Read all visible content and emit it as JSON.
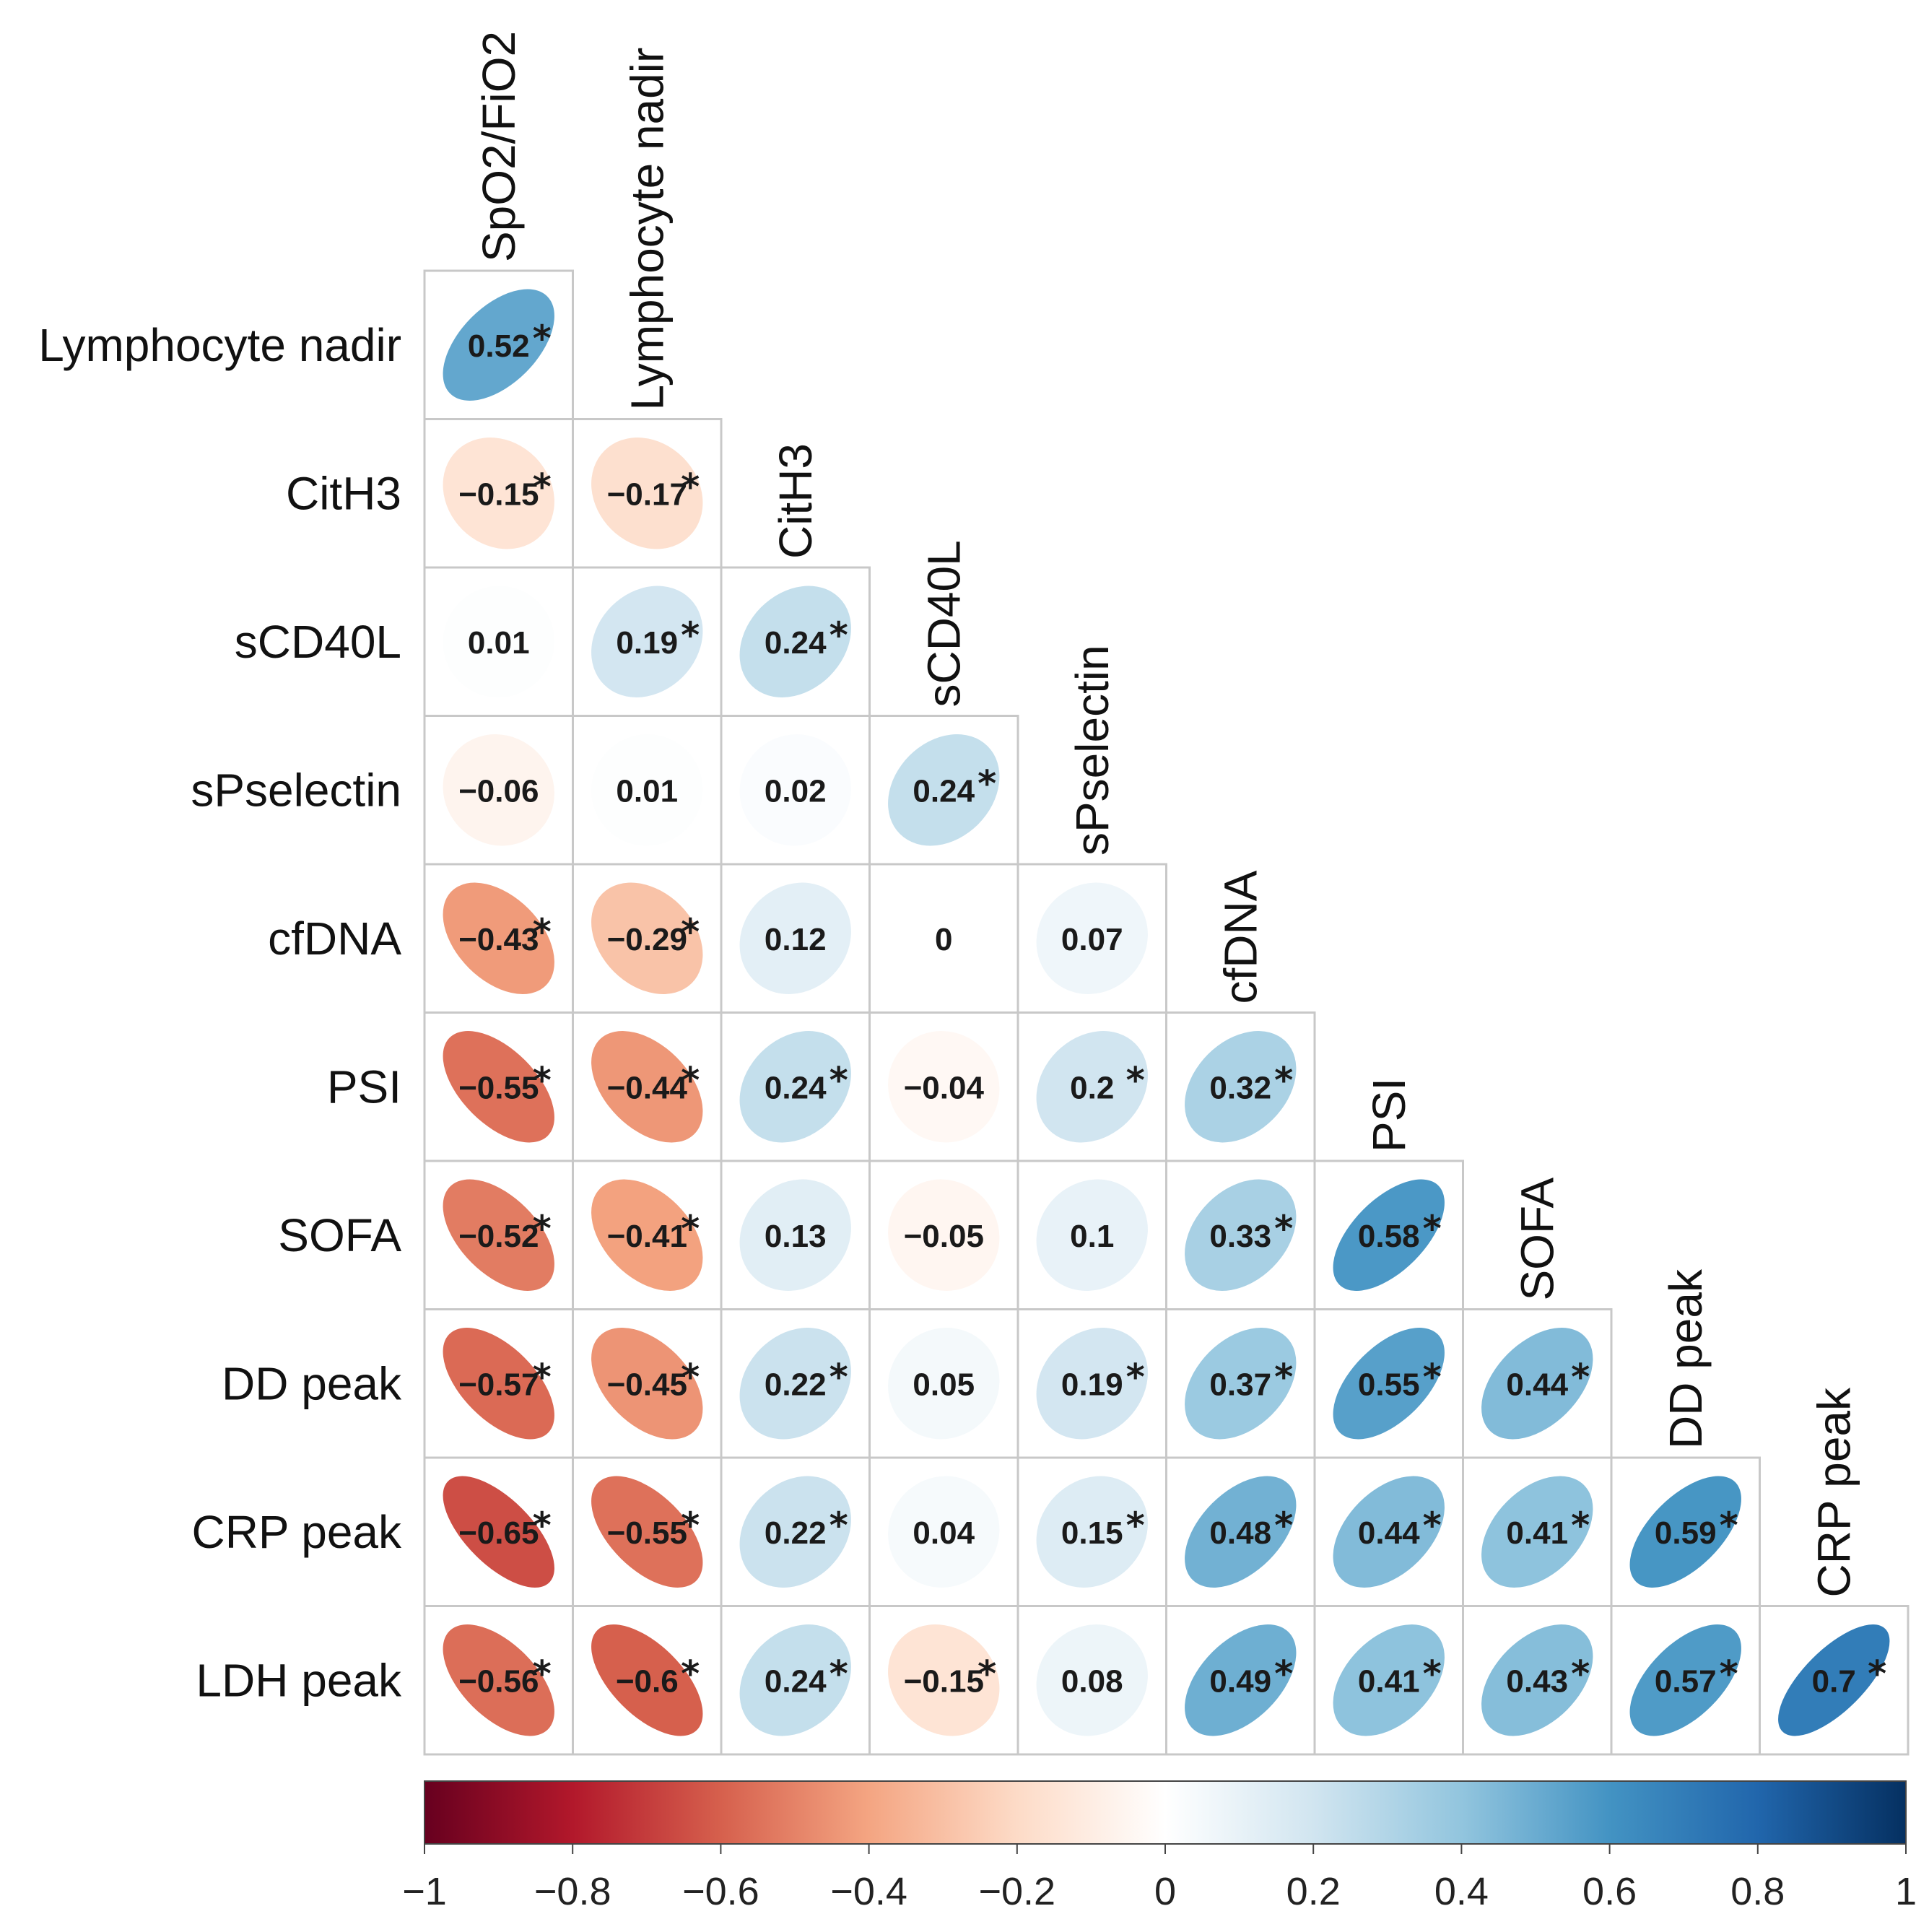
{
  "chart_data": {
    "type": "heatmap",
    "subtype": "lower-triangular correlation matrix (ellipse glyphs)",
    "variables": [
      "SpO2/FiO2",
      "Lymphocyte nadir",
      "CitH3",
      "sCD40L",
      "sPselectin",
      "cfDNA",
      "PSI",
      "SOFA",
      "DD peak",
      "CRP peak",
      "LDH peak"
    ],
    "row_labels": [
      "Lymphocyte nadir",
      "CitH3",
      "sCD40L",
      "sPselectin",
      "cfDNA",
      "PSI",
      "SOFA",
      "DD peak",
      "CRP peak",
      "LDH peak"
    ],
    "col_labels": [
      "SpO2/FiO2",
      "Lymphocyte nadir",
      "CitH3",
      "sCD40L",
      "sPselectin",
      "cfDNA",
      "PSI",
      "SOFA",
      "DD peak",
      "CRP peak"
    ],
    "cells": [
      [
        {
          "v": 0.52,
          "t": "0.52",
          "sig": true
        }
      ],
      [
        {
          "v": -0.15,
          "t": "−0.15",
          "sig": true
        },
        {
          "v": -0.17,
          "t": "−0.17",
          "sig": true
        }
      ],
      [
        {
          "v": 0.01,
          "t": "0.01",
          "sig": false
        },
        {
          "v": 0.19,
          "t": "0.19",
          "sig": true
        },
        {
          "v": 0.24,
          "t": "0.24",
          "sig": true
        }
      ],
      [
        {
          "v": -0.06,
          "t": "−0.06",
          "sig": false
        },
        {
          "v": 0.01,
          "t": "0.01",
          "sig": false
        },
        {
          "v": 0.02,
          "t": "0.02",
          "sig": false
        },
        {
          "v": 0.24,
          "t": "0.24",
          "sig": true
        }
      ],
      [
        {
          "v": -0.43,
          "t": "−0.43",
          "sig": true
        },
        {
          "v": -0.29,
          "t": "−0.29",
          "sig": true
        },
        {
          "v": 0.12,
          "t": "0.12",
          "sig": false
        },
        {
          "v": 0,
          "t": "0",
          "sig": false
        },
        {
          "v": 0.07,
          "t": "0.07",
          "sig": false
        }
      ],
      [
        {
          "v": -0.55,
          "t": "−0.55",
          "sig": true
        },
        {
          "v": -0.44,
          "t": "−0.44",
          "sig": true
        },
        {
          "v": 0.24,
          "t": "0.24",
          "sig": true
        },
        {
          "v": -0.04,
          "t": "−0.04",
          "sig": false
        },
        {
          "v": 0.2,
          "t": "0.2",
          "sig": true
        },
        {
          "v": 0.32,
          "t": "0.32",
          "sig": true
        }
      ],
      [
        {
          "v": -0.52,
          "t": "−0.52",
          "sig": true
        },
        {
          "v": -0.41,
          "t": "−0.41",
          "sig": true
        },
        {
          "v": 0.13,
          "t": "0.13",
          "sig": false
        },
        {
          "v": -0.05,
          "t": "−0.05",
          "sig": false
        },
        {
          "v": 0.1,
          "t": "0.1",
          "sig": false
        },
        {
          "v": 0.33,
          "t": "0.33",
          "sig": true
        },
        {
          "v": 0.58,
          "t": "0.58",
          "sig": true
        }
      ],
      [
        {
          "v": -0.57,
          "t": "−0.57",
          "sig": true
        },
        {
          "v": -0.45,
          "t": "−0.45",
          "sig": true
        },
        {
          "v": 0.22,
          "t": "0.22",
          "sig": true
        },
        {
          "v": 0.05,
          "t": "0.05",
          "sig": false
        },
        {
          "v": 0.19,
          "t": "0.19",
          "sig": true
        },
        {
          "v": 0.37,
          "t": "0.37",
          "sig": true
        },
        {
          "v": 0.55,
          "t": "0.55",
          "sig": true
        },
        {
          "v": 0.44,
          "t": "0.44",
          "sig": true
        }
      ],
      [
        {
          "v": -0.65,
          "t": "−0.65",
          "sig": true
        },
        {
          "v": -0.55,
          "t": "−0.55",
          "sig": true
        },
        {
          "v": 0.22,
          "t": "0.22",
          "sig": true
        },
        {
          "v": 0.04,
          "t": "0.04",
          "sig": false
        },
        {
          "v": 0.15,
          "t": "0.15",
          "sig": true
        },
        {
          "v": 0.48,
          "t": "0.48",
          "sig": true
        },
        {
          "v": 0.44,
          "t": "0.44",
          "sig": true
        },
        {
          "v": 0.41,
          "t": "0.41",
          "sig": true
        },
        {
          "v": 0.59,
          "t": "0.59",
          "sig": true
        }
      ],
      [
        {
          "v": -0.56,
          "t": "−0.56",
          "sig": true
        },
        {
          "v": -0.6,
          "t": "−0.6",
          "sig": true
        },
        {
          "v": 0.24,
          "t": "0.24",
          "sig": true
        },
        {
          "v": -0.15,
          "t": "−0.15",
          "sig": true
        },
        {
          "v": 0.08,
          "t": "0.08",
          "sig": false
        },
        {
          "v": 0.49,
          "t": "0.49",
          "sig": true
        },
        {
          "v": 0.41,
          "t": "0.41",
          "sig": true
        },
        {
          "v": 0.43,
          "t": "0.43",
          "sig": true
        },
        {
          "v": 0.57,
          "t": "0.57",
          "sig": true
        },
        {
          "v": 0.7,
          "t": "0.7",
          "sig": true
        }
      ]
    ],
    "significance_marker": "*",
    "colorbar": {
      "range": [
        -1,
        1
      ],
      "ticks": [
        -1,
        -0.8,
        -0.6,
        -0.4,
        -0.2,
        0,
        0.2,
        0.4,
        0.6,
        0.8,
        1
      ],
      "tick_labels": [
        "−1",
        "−0.8",
        "−0.6",
        "−0.4",
        "−0.2",
        "0",
        "0.2",
        "0.4",
        "0.6",
        "0.8",
        "1"
      ],
      "placement": "bottom",
      "colormap": "RdBu",
      "stops": [
        "#67001f",
        "#b2182b",
        "#d6604d",
        "#f4a582",
        "#fddbc7",
        "#ffffff",
        "#d1e5f0",
        "#92c5de",
        "#4393c3",
        "#2166ac",
        "#053061"
      ]
    },
    "grid": true
  }
}
